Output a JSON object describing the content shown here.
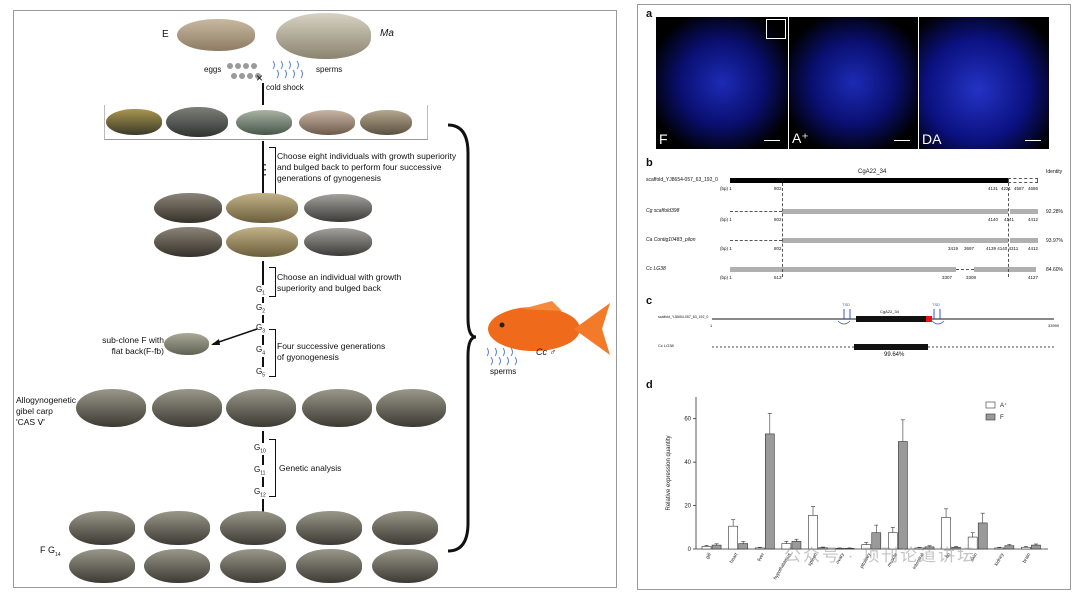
{
  "left": {
    "species": {
      "e": "E",
      "ma": "Ma",
      "cc": "Cc",
      "cc_symbol": "♂"
    },
    "gametes": {
      "eggs": "eggs",
      "sperms": "sperms",
      "cross": "×",
      "cold_shock": "cold shock"
    },
    "steps": {
      "step1": "Choose eight individuals with growth superiority and bulged back to perform four successive generations of gynogenesis",
      "step2": "Choose an individual with growth superiority and bulged back",
      "step3": "Four successive generations of gyonogenesis",
      "step4": "Genetic analysis"
    },
    "dots": "⋮",
    "gens": {
      "g1": "G",
      "g1_sub": "1",
      "g2": "G",
      "g2_sub": "2",
      "g3": "G",
      "g3_sub": "3",
      "g4": "G",
      "g4_sub": "4",
      "g5": "G",
      "g5_sub": "5",
      "g10": "G",
      "g10_sub": "10",
      "g11": "G",
      "g11_sub": "11",
      "g12": "G",
      "g12_sub": "12"
    },
    "subclone": {
      "line1": "sub-clone F with",
      "line2": "flat back(F-fb)"
    },
    "gibel": {
      "line1": "Allogynogenetic",
      "line2": "gibel carp",
      "line3": "'CAS Ⅴ'"
    },
    "fg": {
      "main": "F G",
      "sub": "14"
    },
    "sperms_right": "sperms"
  },
  "panelA": {
    "letter": "a",
    "labels": {
      "f": "F",
      "aplus": "A⁺",
      "da": "DA"
    }
  },
  "panelB": {
    "letter": "b",
    "gene": "CgA22_34",
    "identity_header": "Identity",
    "rows": [
      {
        "name": "scaffold_YJ8654-057_63_192_0",
        "bp": "(bp) 1",
        "n1": "802",
        "n2": "4131",
        "n3": "4221",
        "n4": "4587",
        "n5": "4686",
        "identity": ""
      },
      {
        "name": "Cg scaffold398",
        "bp": "(bp) 1",
        "n1": "802",
        "n2": "4140",
        "n3": "4141",
        "n4": "",
        "n5": "4412",
        "identity": "92.28%"
      },
      {
        "name": "Ca Contig10483_pilon",
        "bp": "(bp) 1",
        "n1": "802",
        "n2": "3419",
        "n3": "3697",
        "n4": "4139 4140 4311",
        "n5": "4412",
        "identity": "93.97%"
      },
      {
        "name": "Cc LG38",
        "bp": "(bp) 1",
        "n1": "613",
        "n2": "3307",
        "n3": "3308",
        "n4": "",
        "n5": "4127",
        "identity": "84.60%"
      }
    ]
  },
  "panelC": {
    "letter": "c",
    "scaffold": "scaffold_YJ8654-057_63_192_0",
    "tsd_left": "TSD",
    "tsd_right": "TSD",
    "gene": "CgA22_34",
    "start": "1",
    "end": "33990",
    "lg": "Cc LG38",
    "identity": "99.64%"
  },
  "panelD": {
    "letter": "d",
    "ylabel": "Relative expression quantity",
    "legend": [
      {
        "name": "A⁺"
      },
      {
        "name": "F"
      }
    ],
    "watermark": "公众号 · 顶刊论道讲坛"
  },
  "chart_data": {
    "type": "bar",
    "title": "",
    "xlabel": "",
    "ylabel": "Relative expression quantity",
    "ylim": [
      0,
      70
    ],
    "yticks": [
      0,
      20,
      40,
      60
    ],
    "categories": [
      "gill",
      "heart",
      "liver",
      "hypothalamus",
      "spleen",
      "ovary",
      "pituitary",
      "muscle",
      "intestine",
      "fin",
      "skin",
      "kidney",
      "brain"
    ],
    "series": [
      {
        "name": "A⁺",
        "color": "#ffffff",
        "values": [
          1.2,
          10.5,
          0.5,
          2.5,
          15.5,
          0.3,
          2.0,
          7.5,
          0.5,
          14.5,
          5.5,
          0.5,
          0.8
        ]
      },
      {
        "name": "F",
        "color": "#9a9a9a",
        "values": [
          1.8,
          2.5,
          53,
          3.5,
          0.6,
          0.3,
          7.5,
          49.5,
          1.0,
          0.8,
          12,
          1.5,
          1.8
        ]
      }
    ],
    "errors": {
      "A⁺": [
        0.5,
        3,
        0.3,
        1,
        4,
        0.2,
        1,
        2.5,
        0.3,
        4,
        2,
        0.3,
        0.4
      ],
      "F": [
        0.6,
        1,
        9.5,
        1,
        0.3,
        0.2,
        3.5,
        10,
        0.5,
        0.4,
        4.5,
        0.6,
        0.5
      ]
    }
  }
}
